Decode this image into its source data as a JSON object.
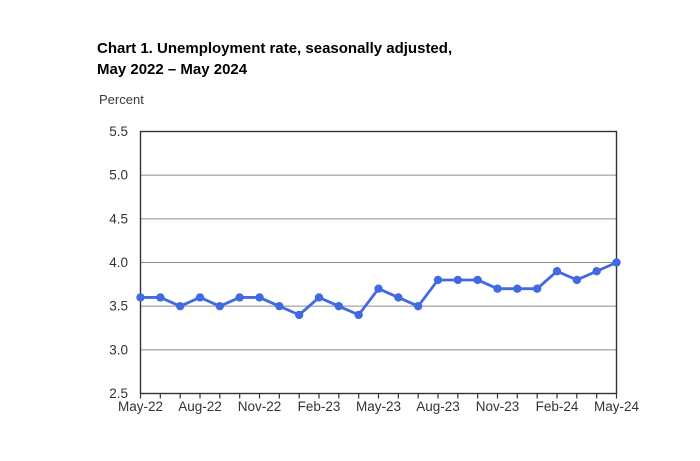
{
  "header": {
    "title_line1": "Chart 1. Unemployment rate, seasonally adjusted,",
    "title_line2": "May 2022 – May 2024",
    "unit_label": "Percent"
  },
  "chart_data": {
    "type": "line",
    "title": "Chart 1. Unemployment rate, seasonally adjusted, May 2022 – May 2024",
    "ylabel": "Percent",
    "xlabel": "",
    "ylim": [
      2.5,
      5.5
    ],
    "y_ticks": [
      2.5,
      3.0,
      3.5,
      4.0,
      4.5,
      5.0,
      5.5
    ],
    "grid": "horizontal",
    "legend": "none",
    "x": [
      "May-22",
      "Jun-22",
      "Jul-22",
      "Aug-22",
      "Sep-22",
      "Oct-22",
      "Nov-22",
      "Dec-22",
      "Jan-23",
      "Feb-23",
      "Mar-23",
      "Apr-23",
      "May-23",
      "Jun-23",
      "Jul-23",
      "Aug-23",
      "Sep-23",
      "Oct-23",
      "Nov-23",
      "Dec-23",
      "Jan-24",
      "Feb-24",
      "Mar-24",
      "Apr-24",
      "May-24"
    ],
    "x_label_every": 3,
    "x_tick_labels_shown": [
      "May-22",
      "Aug-22",
      "Nov-22",
      "Feb-23",
      "May-23",
      "Aug-23",
      "Nov-23",
      "Feb-24",
      "May-24"
    ],
    "series": [
      {
        "name": "Unemployment rate",
        "values": [
          3.6,
          3.6,
          3.5,
          3.6,
          3.5,
          3.6,
          3.6,
          3.5,
          3.4,
          3.6,
          3.5,
          3.4,
          3.7,
          3.6,
          3.5,
          3.8,
          3.8,
          3.8,
          3.7,
          3.7,
          3.7,
          3.9,
          3.8,
          3.9,
          4.0
        ]
      }
    ],
    "colors": {
      "series": "#4169e1",
      "gridline": "#8c8c8c",
      "frame": "#333333",
      "tick_text": "#333333",
      "background": "#ffffff"
    },
    "marker": "circle"
  }
}
